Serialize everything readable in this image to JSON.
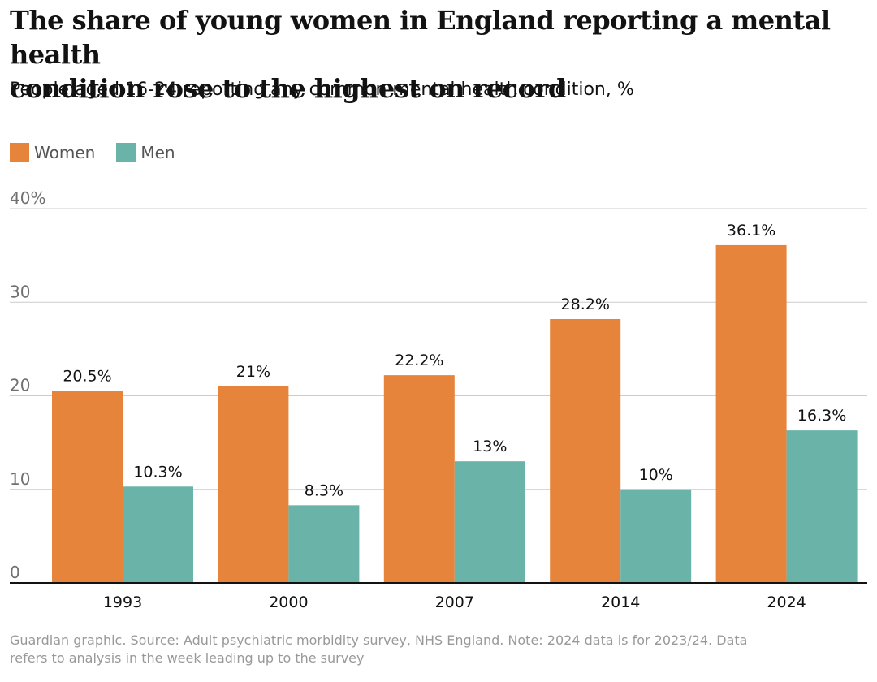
{
  "header": {
    "title_line1": "The share of young women in England reporting a mental health",
    "title_line2": "condition rose to the highest on record",
    "subtitle": "People aged 16-24 reporting any common mental health condition, %"
  },
  "legend": [
    {
      "label": "Women",
      "color": "#e5843a"
    },
    {
      "label": "Men",
      "color": "#69b3a9"
    }
  ],
  "footnote": {
    "line1": "Guardian graphic. Source: Adult psychiatric morbidity survey, NHS England. Note: 2024 data is for 2023/24. Data",
    "line2": "refers to analysis in the week leading up to the survey"
  },
  "chart_data": {
    "type": "bar",
    "categories": [
      "1993",
      "2000",
      "2007",
      "2014",
      "2024"
    ],
    "series": [
      {
        "name": "Women",
        "values": [
          20.5,
          21,
          22.2,
          28.2,
          36.1
        ],
        "labels": [
          "20.5%",
          "21%",
          "22.2%",
          "28.2%",
          "36.1%"
        ],
        "color": "#e5843a"
      },
      {
        "name": "Men",
        "values": [
          10.3,
          8.3,
          13,
          10,
          16.3
        ],
        "labels": [
          "10.3%",
          "8.3%",
          "13%",
          "10%",
          "16.3%"
        ],
        "color": "#69b3a9"
      }
    ],
    "ylim": [
      0,
      40
    ],
    "yticks": [
      0,
      10,
      20,
      30,
      40
    ],
    "ytick_labels": [
      "0",
      "10",
      "20",
      "30",
      "40%"
    ],
    "grid": true,
    "legend_position": "top-left"
  }
}
